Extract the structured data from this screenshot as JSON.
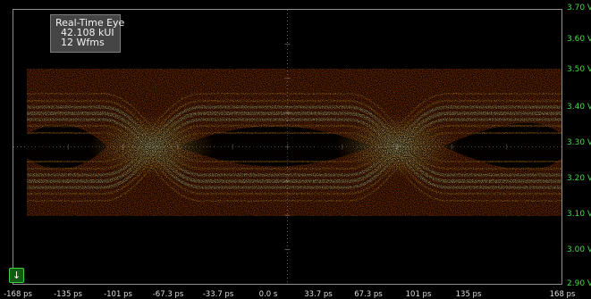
{
  "info_box": {
    "title": "Real-Time Eye",
    "kui": "42.108 kUI",
    "wfms": "12 Wfms"
  },
  "y_axis": {
    "labels": [
      "3.70 V",
      "3.60 V",
      "3.50 V",
      "3.40 V",
      "3.30 V",
      "3.20 V",
      "3.10 V",
      "3.00 V",
      "2.90 V"
    ],
    "color": "#3fdc3f"
  },
  "x_axis": {
    "labels": [
      "-168 ps",
      "-135 ps",
      "-101 ps",
      "-67.3 ps",
      "-33.7 ps",
      "0.0 s",
      "33.7 ps",
      "67.3 ps",
      "101 ps",
      "135 ps",
      "168 ps"
    ]
  },
  "channel_button": {
    "icon": "channel-ground-icon",
    "glyph": "↓"
  },
  "colors": {
    "hot": "#ffe08a",
    "mid": "#ff9a1e",
    "cool": "#d24a00",
    "grid": "#5a5a5a"
  }
}
